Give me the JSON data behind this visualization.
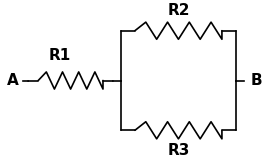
{
  "bg_color": "#ffffff",
  "line_color": "#000000",
  "label_A": "A",
  "label_B": "B",
  "label_R1": "R1",
  "label_R2": "R2",
  "label_R3": "R3",
  "figsize": [
    2.69,
    1.61
  ],
  "dpi": 100
}
